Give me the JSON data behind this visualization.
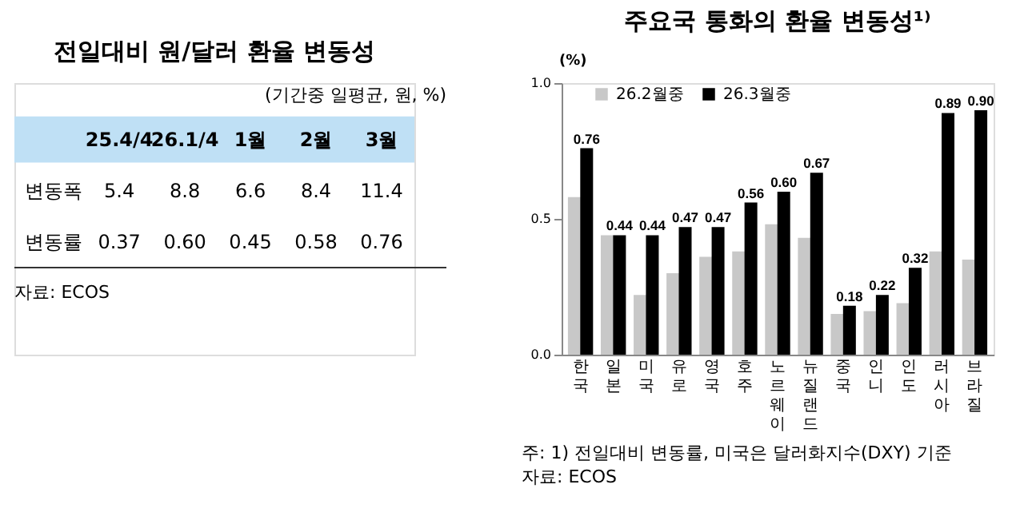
{
  "chart_data": [
    {
      "type": "other",
      "title": "전일대비 원/달러 환율 변동성",
      "subtitle": "(기간중 일평균, 원, %)",
      "categories": [
        "25.4/4",
        "26.1/4",
        "1월",
        "2월",
        "3월"
      ],
      "y_categories": [
        "변동폭",
        "변동률"
      ],
      "cell_labels": [
        [
          "5.4",
          "8.8",
          "6.6",
          "8.4",
          "11.4"
        ],
        [
          "0.37",
          "0.60",
          "0.45",
          "0.58",
          "0.76"
        ]
      ],
      "annotations": [
        "자료: ECOS"
      ]
    },
    {
      "type": "bar",
      "title": "주요국 통화의 환율 변동성¹⁾",
      "ylabel": "(%)",
      "categories": [
        "한국",
        "일본",
        "미국",
        "유로",
        "영국",
        "호주",
        "노르웨이",
        "뉴질랜드",
        "중국",
        "인니",
        "인도",
        "러시아",
        "브라질"
      ],
      "series": [
        {
          "name": "26.2월중",
          "color": "#c8c8c8",
          "values": [
            0.58,
            0.44,
            0.22,
            0.3,
            0.36,
            0.38,
            0.48,
            0.43,
            0.15,
            0.16,
            0.19,
            0.38,
            0.35
          ]
        },
        {
          "name": "26.3월중",
          "color": "#000000",
          "values": [
            0.76,
            0.44,
            0.44,
            0.47,
            0.47,
            0.56,
            0.6,
            0.67,
            0.18,
            0.22,
            0.32,
            0.89,
            0.9
          ],
          "value_labels": [
            "0.76",
            "0.44",
            "0.44",
            "0.47",
            "0.47",
            "0.56",
            "0.60",
            "0.67",
            "0.18",
            "0.22",
            "0.32",
            "0.89",
            "0.90"
          ]
        }
      ],
      "ylim": [
        0,
        1
      ],
      "yticks": [
        {
          "value": 0,
          "label": "0.0"
        },
        {
          "value": 0.5,
          "label": "0.5"
        },
        {
          "value": 1,
          "label": "1.0"
        }
      ],
      "grid": false,
      "legend": "top left",
      "annotations": [
        "주: 1) 전일대비 변동률, 미국은 달러화지수(DXY) 기준",
        "자료: ECOS"
      ]
    }
  ]
}
